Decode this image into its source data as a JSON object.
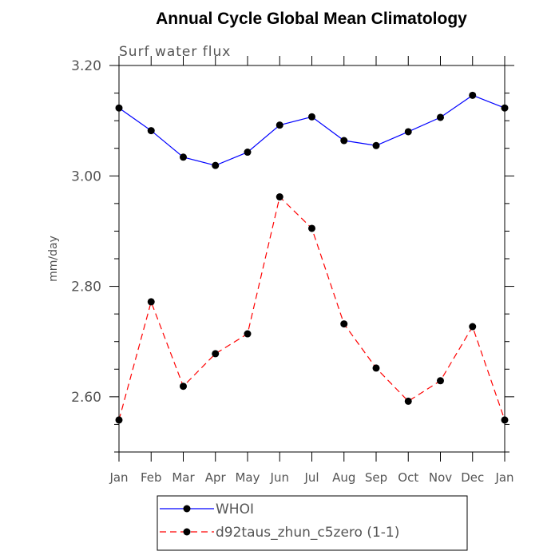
{
  "chart_data": {
    "type": "line",
    "title": "Annual Cycle Global Mean Climatology",
    "subtitle": "Surf water flux",
    "xlabel": "",
    "ylabel": "mm/day",
    "categories": [
      "Jan",
      "Feb",
      "Mar",
      "Apr",
      "May",
      "Jun",
      "Jul",
      "Aug",
      "Sep",
      "Oct",
      "Nov",
      "Dec",
      "Jan"
    ],
    "ylim": [
      2.5,
      3.2
    ],
    "yticks_major": [
      2.6,
      2.8,
      3.0,
      3.2
    ],
    "ytick_labels": [
      "2.60",
      "2.80",
      "3.00",
      "3.20"
    ],
    "yticks_minor_step": 0.05,
    "grid": false,
    "legend_position": "bottom",
    "series": [
      {
        "name": "WHOI",
        "color": "#0000ff",
        "dash": "solid",
        "values": [
          3.123,
          3.082,
          3.034,
          3.019,
          3.043,
          3.092,
          3.107,
          3.064,
          3.055,
          3.08,
          3.106,
          3.146,
          3.123
        ]
      },
      {
        "name": "d92taus_zhun_c5zero (1-1)",
        "color": "#ff0000",
        "dash": "dashed",
        "values": [
          2.558,
          2.772,
          2.619,
          2.678,
          2.714,
          2.962,
          2.905,
          2.732,
          2.652,
          2.592,
          2.629,
          2.727,
          2.558
        ]
      }
    ]
  }
}
